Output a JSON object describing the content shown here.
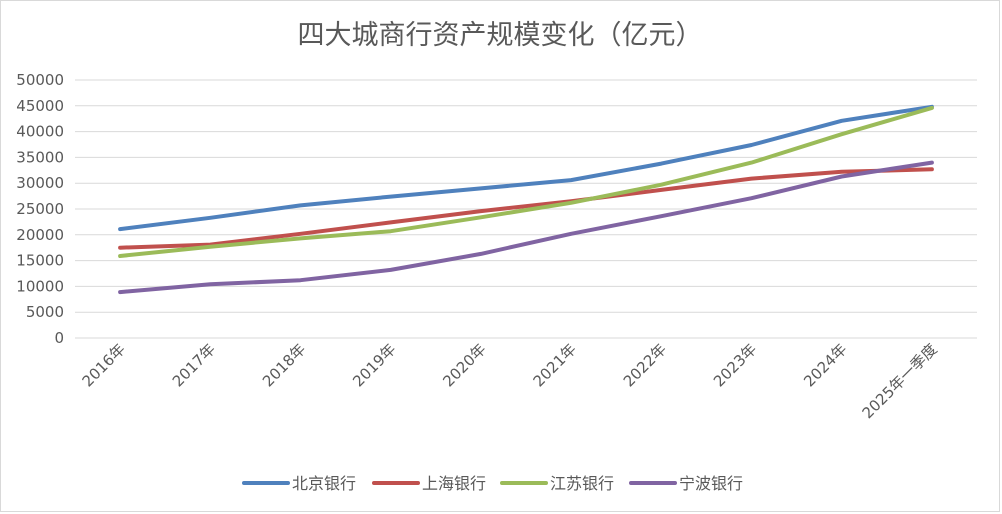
{
  "chart_data": {
    "type": "line",
    "title": "四大城商行资产规模变化（亿元）",
    "xlabel": "",
    "ylabel": "",
    "ylim": [
      0,
      50000
    ],
    "yticks": [
      0,
      5000,
      10000,
      15000,
      20000,
      25000,
      30000,
      35000,
      40000,
      45000,
      50000
    ],
    "yticklabels": [
      "0",
      "5000",
      "10000",
      "15000",
      "20000",
      "25000",
      "30000",
      "35000",
      "40000",
      "45000",
      "50000"
    ],
    "grid": true,
    "legend": "bottom",
    "categories": [
      "2016年",
      "2017年",
      "2018年",
      "2019年",
      "2020年",
      "2021年",
      "2022年",
      "2023年",
      "2024年",
      "2025年一季度"
    ],
    "series": [
      {
        "name": "北京银行",
        "color": "#4f81bd",
        "values": [
          21100,
          23300,
          25700,
          27400,
          29000,
          30600,
          33800,
          37400,
          42100,
          44800
        ]
      },
      {
        "name": "上海银行",
        "color": "#c0504d",
        "values": [
          17500,
          18100,
          20200,
          22400,
          24600,
          26500,
          28700,
          30900,
          32200,
          32700
        ]
      },
      {
        "name": "江苏银行",
        "color": "#9bbb59",
        "values": [
          15900,
          17700,
          19300,
          20700,
          23400,
          26200,
          29700,
          34000,
          39500,
          44600
        ]
      },
      {
        "name": "宁波银行",
        "color": "#8064a2",
        "values": [
          8900,
          10400,
          11200,
          13200,
          16300,
          20200,
          23600,
          27100,
          31300,
          34000
        ]
      }
    ]
  }
}
